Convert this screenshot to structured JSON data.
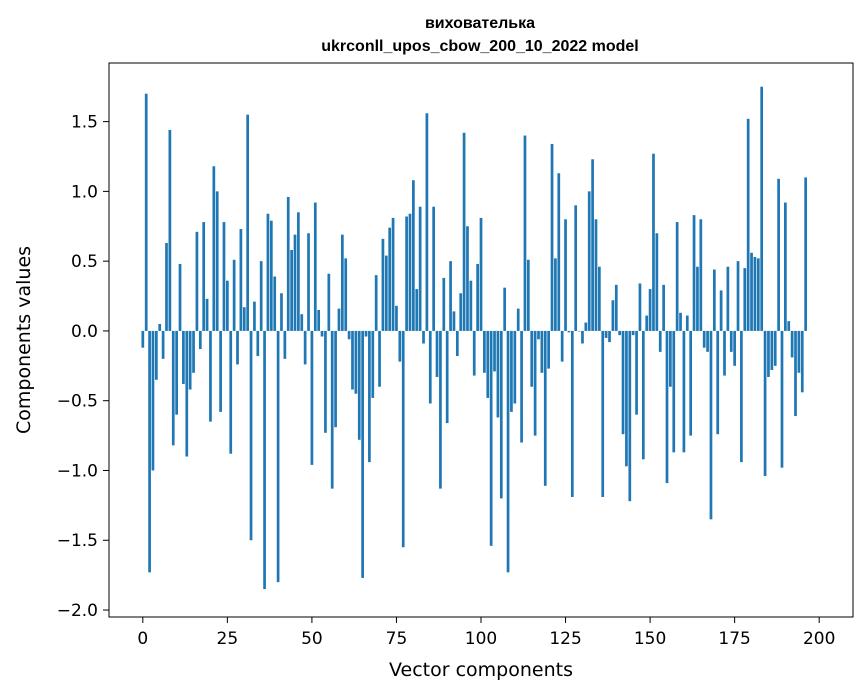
{
  "chart_data": {
    "type": "bar",
    "title": "вихователька",
    "subtitle": "ukrconll_upos_cbow_200_10_2022 model",
    "xlabel": "Vector components",
    "ylabel": "Components values",
    "xlim": [
      -10,
      210
    ],
    "ylim": [
      -2.05,
      1.92
    ],
    "xticks": [
      0,
      25,
      50,
      75,
      100,
      125,
      150,
      175,
      200
    ],
    "xtick_labels": [
      "0",
      "25",
      "50",
      "75",
      "100",
      "125",
      "150",
      "175",
      "200"
    ],
    "yticks": [
      -2.0,
      -1.5,
      -1.0,
      -0.5,
      0.0,
      0.5,
      1.0,
      1.5
    ],
    "ytick_labels": [
      "−2.0",
      "−1.5",
      "−1.0",
      "−0.5",
      "0.0",
      "0.5",
      "1.0",
      "1.5"
    ],
    "bar_color": "#1f77b4",
    "grid": false,
    "values": [
      -0.12,
      1.7,
      -1.73,
      -1.0,
      -0.35,
      0.05,
      -0.2,
      0.63,
      1.44,
      -0.82,
      -0.6,
      0.48,
      -0.38,
      -0.9,
      -0.42,
      -0.3,
      0.71,
      -0.13,
      0.78,
      0.23,
      -0.65,
      1.18,
      1.0,
      -0.58,
      0.78,
      0.36,
      -0.88,
      0.51,
      -0.24,
      0.73,
      0.17,
      1.55,
      -1.5,
      0.21,
      -0.18,
      0.5,
      -1.85,
      0.84,
      0.79,
      0.39,
      -1.8,
      0.27,
      -0.2,
      0.96,
      0.58,
      0.69,
      0.85,
      0.12,
      -0.24,
      0.7,
      -0.96,
      0.92,
      0.15,
      -0.04,
      -0.73,
      0.41,
      -1.13,
      -0.69,
      0.16,
      0.69,
      0.52,
      -0.06,
      -0.42,
      -0.45,
      -0.78,
      -1.77,
      -0.04,
      -0.94,
      -0.48,
      0.4,
      -0.4,
      0.66,
      0.54,
      0.74,
      0.81,
      0.18,
      -0.22,
      -1.55,
      0.82,
      0.84,
      1.08,
      0.3,
      0.89,
      -0.09,
      1.56,
      -0.52,
      0.89,
      -0.33,
      -1.13,
      0.38,
      -0.66,
      0.5,
      0.14,
      -0.18,
      0.27,
      1.42,
      0.75,
      0.36,
      -0.32,
      0.48,
      0.81,
      -0.3,
      -0.48,
      -1.54,
      -0.29,
      -0.62,
      -1.2,
      0.31,
      -1.73,
      -0.58,
      -0.52,
      0.16,
      -0.8,
      1.4,
      0.51,
      -0.4,
      -0.75,
      -0.06,
      -0.3,
      -1.11,
      -0.27,
      1.34,
      0.52,
      1.13,
      -0.22,
      0.8,
      -0.01,
      -1.19,
      0.9,
      0.0,
      -0.09,
      0.06,
      1.0,
      1.23,
      0.8,
      0.46,
      -1.19,
      -0.05,
      -0.08,
      0.22,
      0.33,
      -0.03,
      -0.74,
      -0.97,
      -1.22,
      -0.03,
      -0.6,
      0.34,
      -0.92,
      0.11,
      0.3,
      1.27,
      0.7,
      -0.15,
      0.33,
      -1.09,
      -0.4,
      -0.87,
      0.78,
      0.13,
      -0.87,
      0.11,
      -0.75,
      0.83,
      0.46,
      0.8,
      -0.12,
      -0.15,
      -1.35,
      0.44,
      -0.74,
      0.29,
      -0.32,
      0.46,
      -0.15,
      -0.25,
      0.5,
      -0.94,
      0.45,
      1.52,
      0.56,
      0.53,
      0.52,
      1.75,
      -1.04,
      -0.33,
      -0.28,
      -0.25,
      1.09,
      -0.98,
      0.92,
      0.07,
      -0.19,
      -0.61,
      -0.3,
      -0.44,
      1.1
    ]
  }
}
